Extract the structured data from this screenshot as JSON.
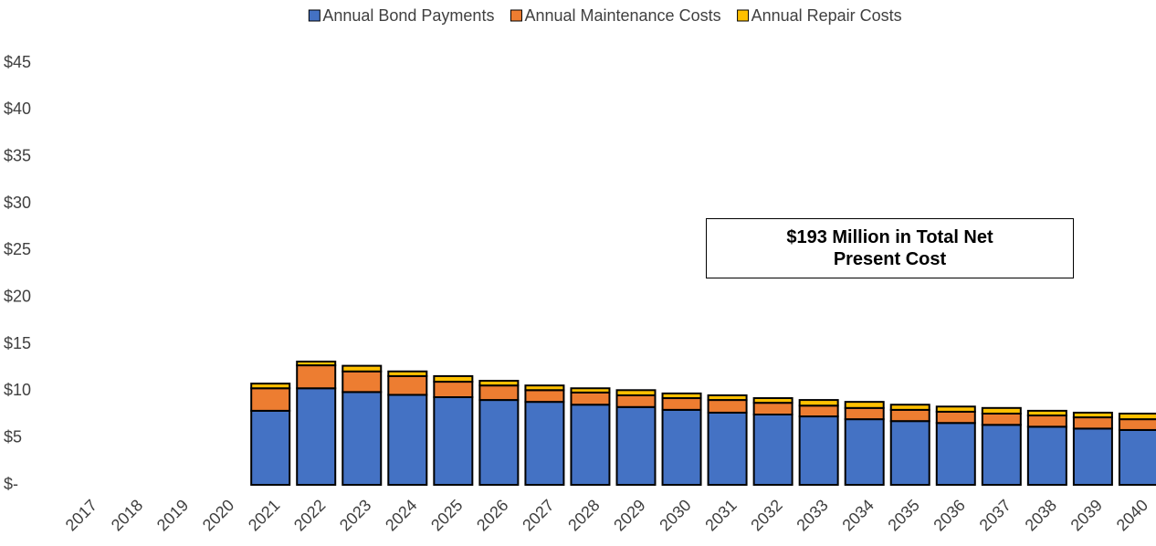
{
  "chart_data": {
    "type": "stacked-bar",
    "categories": [
      "2017",
      "2018",
      "2019",
      "2020",
      "2021",
      "2022",
      "2023",
      "2024",
      "2025",
      "2026",
      "2027",
      "2028",
      "2029",
      "2030",
      "2031",
      "2032",
      "2033",
      "2034",
      "2035",
      "2036",
      "2037",
      "2038",
      "2039",
      "2040"
    ],
    "series": [
      {
        "name": "Annual Bond Payments",
        "color": "#4472c4",
        "values": [
          null,
          null,
          null,
          null,
          7.9,
          10.3,
          9.9,
          9.6,
          9.35,
          9.05,
          8.85,
          8.55,
          8.3,
          8.0,
          7.7,
          7.5,
          7.3,
          7.0,
          6.8,
          6.6,
          6.4,
          6.2,
          6.0,
          5.85
        ]
      },
      {
        "name": "Annual Maintenance Costs",
        "color": "#ed7d31",
        "values": [
          null,
          null,
          null,
          null,
          2.4,
          2.45,
          2.2,
          2.0,
          1.65,
          1.55,
          1.25,
          1.3,
          1.25,
          1.25,
          1.35,
          1.25,
          1.15,
          1.2,
          1.2,
          1.2,
          1.2,
          1.2,
          1.2,
          1.15
        ]
      },
      {
        "name": "Annual Repair Costs",
        "color": "#ffc000",
        "values": [
          null,
          null,
          null,
          null,
          0.5,
          0.4,
          0.6,
          0.5,
          0.6,
          0.5,
          0.5,
          0.45,
          0.55,
          0.5,
          0.5,
          0.5,
          0.6,
          0.65,
          0.55,
          0.55,
          0.6,
          0.5,
          0.5,
          0.6
        ]
      }
    ],
    "ylim": [
      0,
      45
    ],
    "yticks": [
      {
        "value": 0,
        "label": "$-"
      },
      {
        "value": 5,
        "label": "$5"
      },
      {
        "value": 10,
        "label": "$10"
      },
      {
        "value": 15,
        "label": "$15"
      },
      {
        "value": 20,
        "label": "$20"
      },
      {
        "value": 25,
        "label": "$25"
      },
      {
        "value": 30,
        "label": "$30"
      },
      {
        "value": 35,
        "label": "$35"
      },
      {
        "value": 40,
        "label": "$40"
      },
      {
        "value": 45,
        "label": "$45"
      }
    ],
    "legend": "top",
    "annotation": "$193 Million in Total Net Present Cost"
  }
}
